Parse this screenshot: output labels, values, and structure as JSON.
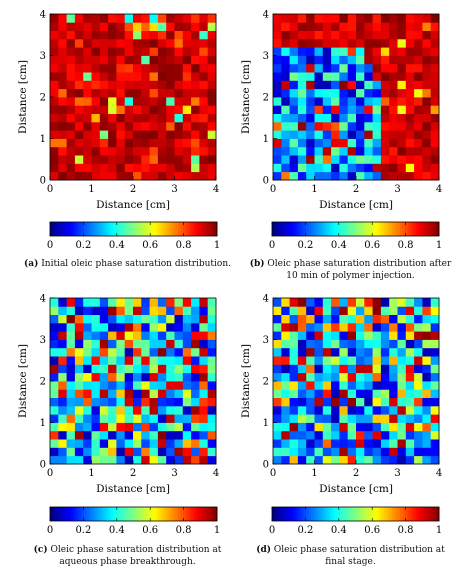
{
  "figure": {
    "panels": [
      {
        "label": "(a)",
        "caption": "Initial oleic phase saturation distribution."
      },
      {
        "label": "(b)",
        "caption": "Oleic phase saturation distribution after 10 min of polymer injection."
      },
      {
        "label": "(c)",
        "caption": "Oleic phase saturation distribution at aqueous phase breakthrough."
      },
      {
        "label": "(d)",
        "caption": "Oleic phase saturation distribution at final stage."
      }
    ]
  },
  "chart_data": [
    {
      "type": "heatmap",
      "title": "",
      "xlabel": "Distance [cm]",
      "ylabel": "Distance [cm]",
      "xlim": [
        0,
        4
      ],
      "ylim": [
        0,
        4
      ],
      "xticks": [
        "0",
        "1",
        "2",
        "3",
        "4"
      ],
      "yticks": [
        "0",
        "1",
        "2",
        "3",
        "4"
      ],
      "grid_size": 20,
      "colormap": "jet",
      "colorbar": {
        "range": [
          0,
          1
        ],
        "ticks": [
          "0",
          "0.2",
          "0.4",
          "0.6",
          "0.8",
          "1"
        ]
      },
      "pattern": "mostly high saturation (0.85-1.0) everywhere with scattered slightly lower cells"
    },
    {
      "type": "heatmap",
      "title": "",
      "xlabel": "Distance [cm]",
      "ylabel": "Distance [cm]",
      "xlim": [
        0,
        4
      ],
      "ylim": [
        0,
        4
      ],
      "xticks": [
        "0",
        "1",
        "2",
        "3",
        "4"
      ],
      "yticks": [
        "0",
        "1",
        "2",
        "3",
        "4"
      ],
      "grid_size": 20,
      "colormap": "jet",
      "colorbar": {
        "range": [
          0,
          1
        ],
        "ticks": [
          "0",
          "0.2",
          "0.4",
          "0.6",
          "0.8",
          "1"
        ]
      },
      "pattern": "low saturation region (0.05-0.4) in the left/lower-left quadrant (x under about 2.6 cm, y under about 3.3 cm), high saturation elsewhere"
    },
    {
      "type": "heatmap",
      "title": "",
      "xlabel": "Distance [cm]",
      "ylabel": "Distance [cm]",
      "xlim": [
        0,
        4
      ],
      "ylim": [
        0,
        4
      ],
      "xticks": [
        "0",
        "1",
        "2",
        "3",
        "4"
      ],
      "yticks": [
        "0",
        "1",
        "2",
        "3",
        "4"
      ],
      "grid_size": 20,
      "colormap": "jet",
      "colorbar": {
        "range": [
          0,
          1
        ],
        "ticks": [
          "0",
          "0.2",
          "0.4",
          "0.6",
          "0.8",
          "1"
        ]
      },
      "pattern": "mostly low-to-medium saturation (0.05-0.6) with scattered high cells, more high cells near the right edge"
    },
    {
      "type": "heatmap",
      "title": "",
      "xlabel": "Distance [cm]",
      "ylabel": "Distance [cm]",
      "xlim": [
        0,
        4
      ],
      "ylim": [
        0,
        4
      ],
      "xticks": [
        "0",
        "1",
        "2",
        "3",
        "4"
      ],
      "yticks": [
        "0",
        "1",
        "2",
        "3",
        "4"
      ],
      "grid_size": 20,
      "colormap": "jet",
      "colorbar": {
        "range": [
          0,
          1
        ],
        "ticks": [
          "0",
          "0.2",
          "0.4",
          "0.6",
          "0.8",
          "1"
        ]
      },
      "pattern": "mostly low-to-medium saturation (0.05-0.6) with scattered high cells"
    }
  ]
}
